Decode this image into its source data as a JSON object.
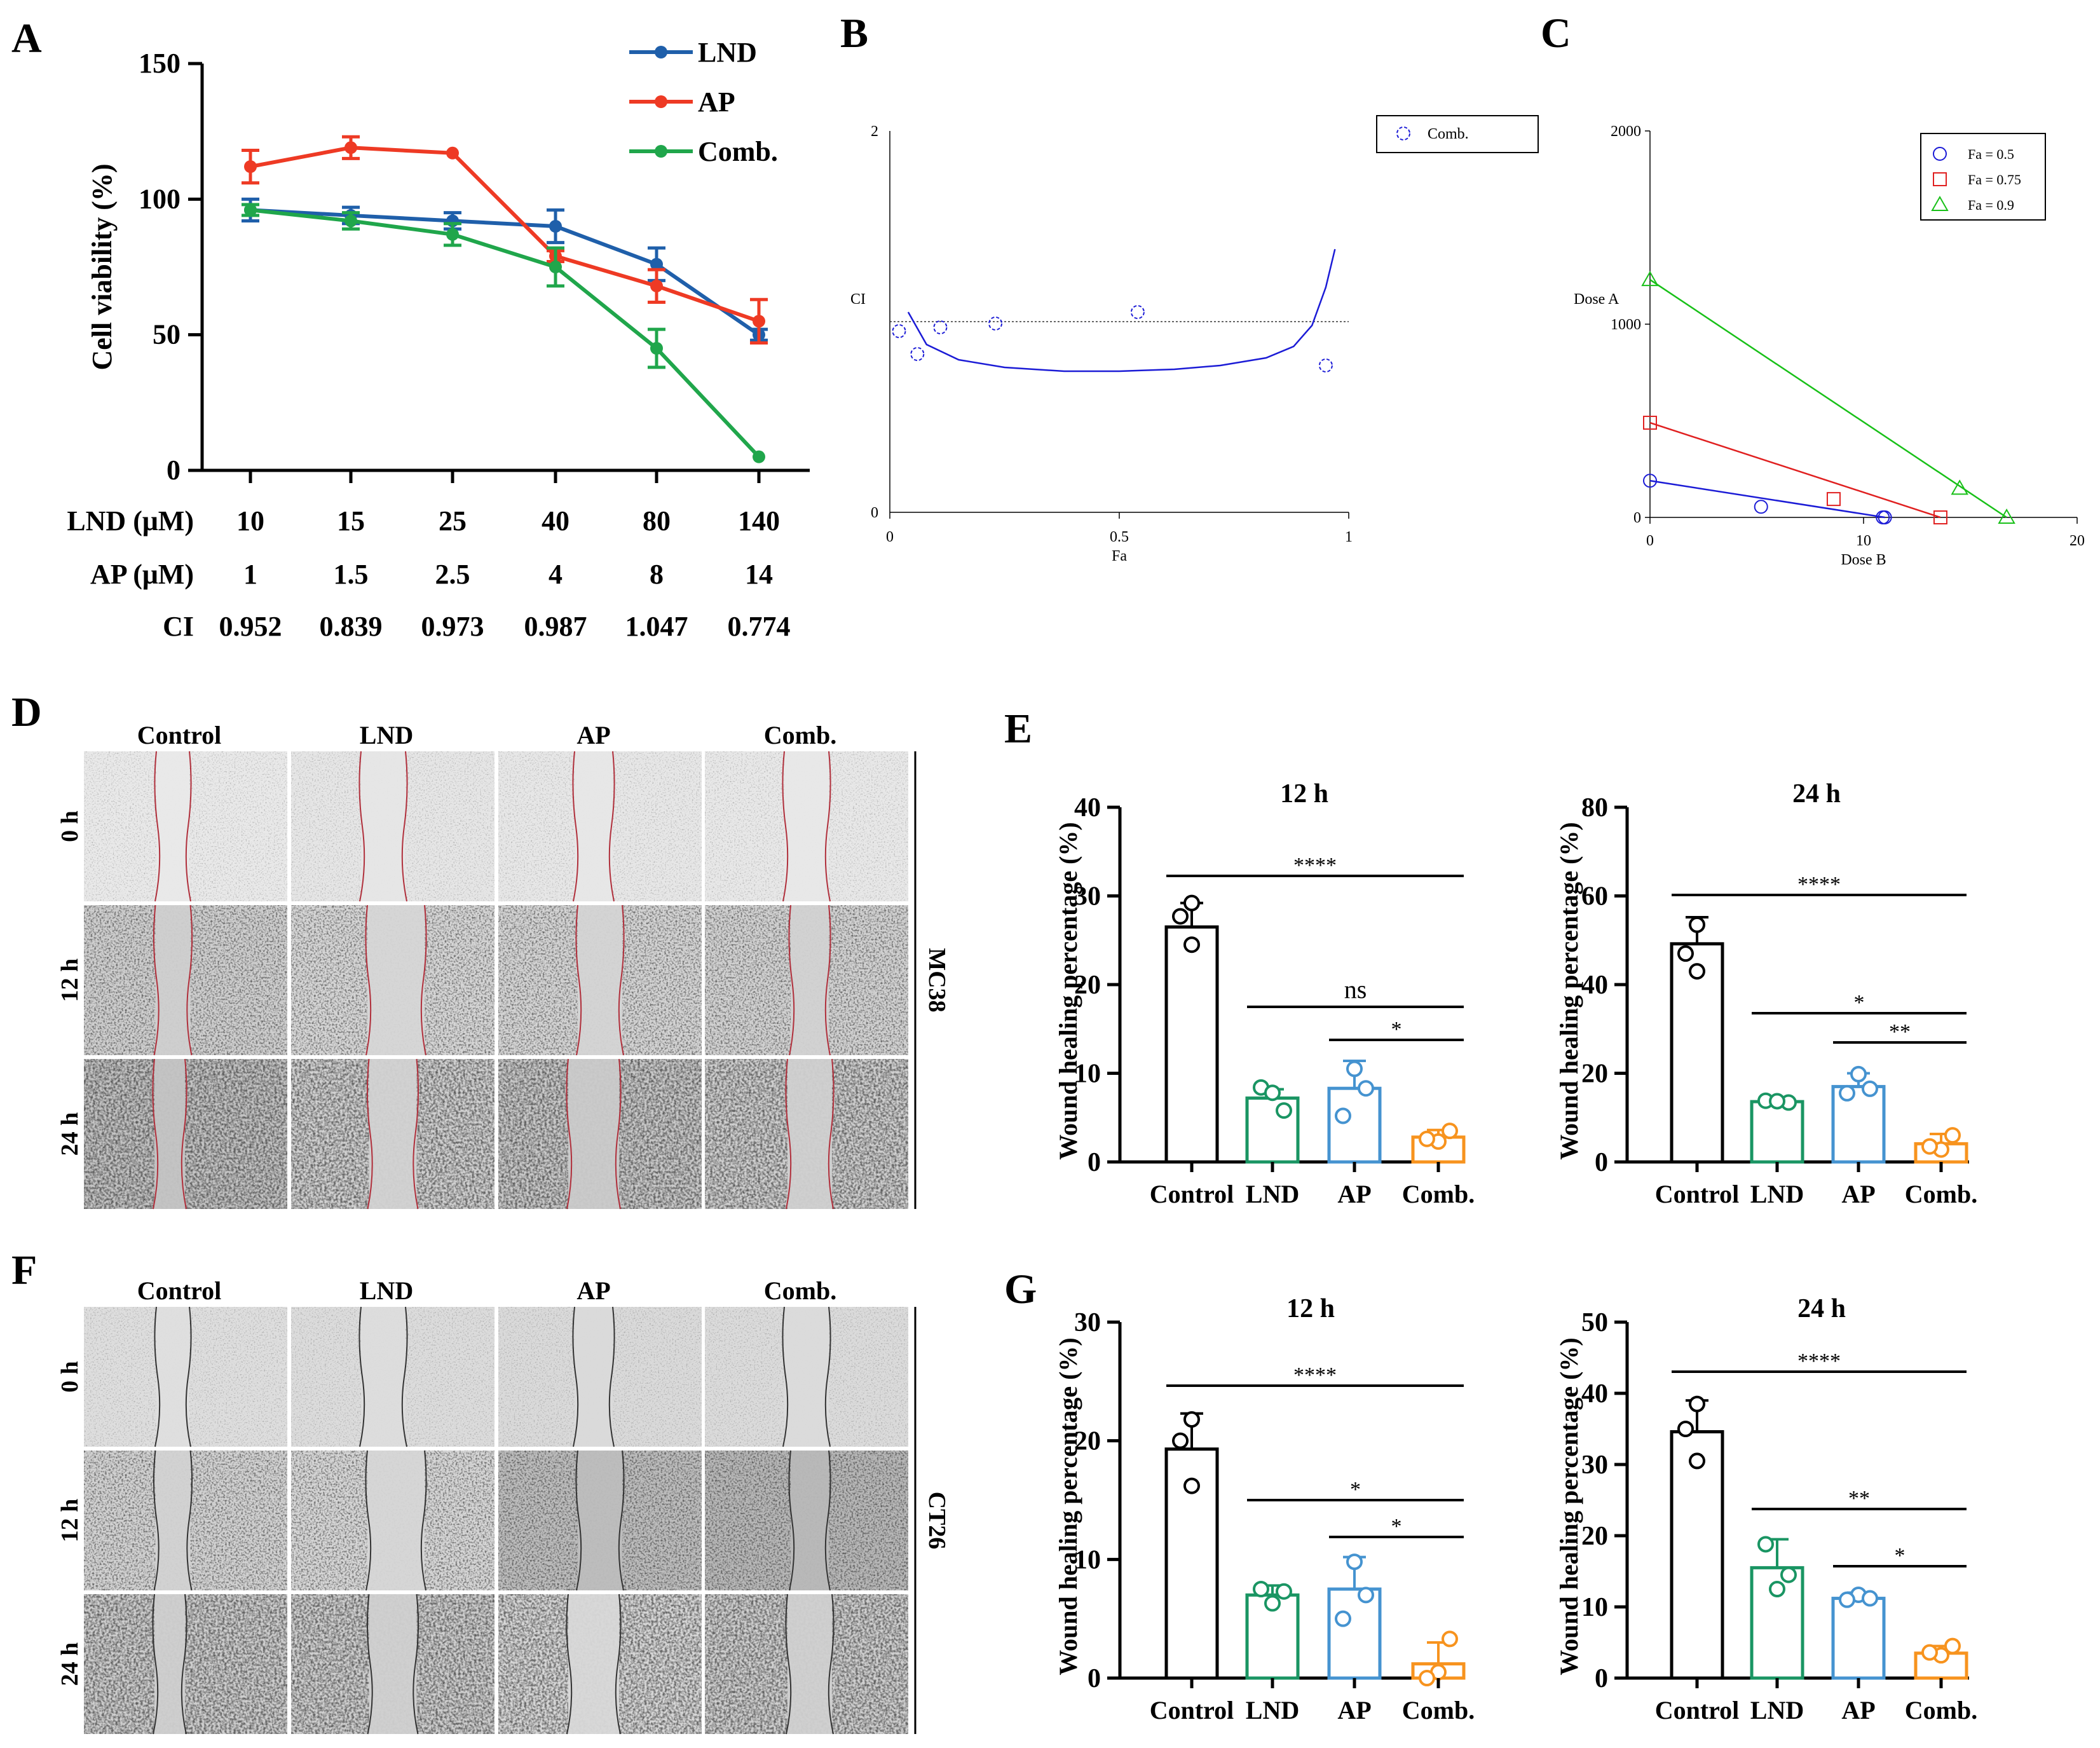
{
  "panel_letters": [
    "A",
    "B",
    "C",
    "D",
    "E",
    "F",
    "G"
  ],
  "colors": {
    "lnd": "#1f5faa",
    "ap": "#ee3a24",
    "comb": "#20a64b",
    "control_bar": "#000000",
    "lnd_bar": "#1a9563",
    "ap_bar": "#4593d0",
    "comb_bar": "#f7931e",
    "isobolo_blue": "#1b1bd6",
    "isobolo_red": "#e02020",
    "isobolo_green": "#18c018"
  },
  "chart_data": [
    {
      "panel": "A",
      "type": "line",
      "title": "",
      "ylabel": "Cell viability (%)",
      "ylim": [
        0,
        150
      ],
      "yticks": [
        0,
        50,
        100,
        150
      ],
      "x": [
        "10",
        "15",
        "25",
        "40",
        "80",
        "140"
      ],
      "series": [
        {
          "name": "LND",
          "values": [
            96,
            94,
            92,
            90,
            76,
            50
          ],
          "errors": [
            4,
            3,
            3,
            6,
            6,
            2
          ]
        },
        {
          "name": "AP",
          "values": [
            112,
            119,
            117,
            79,
            68,
            55
          ],
          "errors": [
            6,
            4,
            0,
            2,
            6,
            8
          ]
        },
        {
          "name": "Comb.",
          "values": [
            96,
            92,
            87,
            75,
            45,
            5
          ],
          "errors": [
            2,
            3,
            4,
            7,
            7,
            0
          ]
        }
      ],
      "table_rows": [
        {
          "label": "LND (μM)",
          "values": [
            "10",
            "15",
            "25",
            "40",
            "80",
            "140"
          ]
        },
        {
          "label": "AP (μM)",
          "values": [
            "1",
            "1.5",
            "2.5",
            "4",
            "8",
            "14"
          ]
        },
        {
          "label": "CI",
          "values": [
            "0.952",
            "0.839",
            "0.973",
            "0.987",
            "1.047",
            "0.774"
          ]
        }
      ],
      "legend_position": "top-right"
    },
    {
      "panel": "B",
      "type": "scatter",
      "xlabel": "Fa",
      "ylabel": "CI",
      "xlim": [
        0,
        1
      ],
      "ylim": [
        0,
        2
      ],
      "xticks": [
        "0",
        "0.5",
        "1"
      ],
      "yticks": [
        "0",
        "2"
      ],
      "reference_line": 1,
      "series": [
        {
          "name": "Comb.",
          "points": [
            [
              0.02,
              0.95
            ],
            [
              0.06,
              0.83
            ],
            [
              0.11,
              0.97
            ],
            [
              0.23,
              0.99
            ],
            [
              0.54,
              1.05
            ],
            [
              0.95,
              0.77
            ]
          ]
        }
      ],
      "fit_curve": [
        [
          0.04,
          1.05
        ],
        [
          0.08,
          0.88
        ],
        [
          0.15,
          0.8
        ],
        [
          0.25,
          0.76
        ],
        [
          0.38,
          0.74
        ],
        [
          0.5,
          0.74
        ],
        [
          0.62,
          0.75
        ],
        [
          0.72,
          0.77
        ],
        [
          0.82,
          0.81
        ],
        [
          0.88,
          0.87
        ],
        [
          0.92,
          0.98
        ],
        [
          0.95,
          1.18
        ],
        [
          0.97,
          1.38
        ]
      ],
      "legend_position": "top-right"
    },
    {
      "panel": "C",
      "type": "scatter",
      "xlabel": "Dose B",
      "ylabel": "Dose A",
      "xlim": [
        0,
        20
      ],
      "ylim": [
        0,
        2000
      ],
      "xticks": [
        "0",
        "10",
        "20"
      ],
      "yticks": [
        "0",
        "1000",
        "2000"
      ],
      "series": [
        {
          "name": "Fa = 0.5",
          "marker": "circle",
          "axis_points": [
            [
              0,
              190
            ],
            [
              11,
              0
            ]
          ],
          "combo": [
            [
              5.2,
              55
            ],
            [
              10.9,
              0
            ]
          ]
        },
        {
          "name": "Fa = 0.75",
          "marker": "square",
          "axis_points": [
            [
              0,
              490
            ],
            [
              13.6,
              0
            ]
          ],
          "combo": [
            [
              8.6,
              95
            ]
          ]
        },
        {
          "name": "Fa = 0.9",
          "marker": "triangle",
          "axis_points": [
            [
              0,
              1230
            ],
            [
              16.7,
              0
            ]
          ],
          "combo": [
            [
              14.5,
              150
            ]
          ]
        }
      ],
      "legend_position": "top-right"
    },
    {
      "panel": "E",
      "type": "bar",
      "title": "12 h",
      "ylabel": "Wound healing percentage  (%)",
      "ylim": [
        0,
        40
      ],
      "yticks": [
        0,
        10,
        20,
        30,
        40
      ],
      "categories": [
        "Control",
        "LND",
        "AP",
        "Comb."
      ],
      "values": [
        26.5,
        7.2,
        8.3,
        2.8
      ],
      "errors": [
        2.7,
        1.0,
        3.1,
        0.8
      ],
      "points": [
        [
          29.2,
          27.7,
          24.5
        ],
        [
          8.4,
          5.8,
          7.8
        ],
        [
          10.5,
          8.3,
          5.2
        ],
        [
          3.5,
          2.3,
          2.6
        ]
      ],
      "significance": [
        {
          "from": 0,
          "to": 3,
          "label": "****"
        },
        {
          "from": 1,
          "to": 3,
          "label": "ns"
        },
        {
          "from": 2,
          "to": 3,
          "label": "*"
        }
      ]
    },
    {
      "panel": "E",
      "type": "bar",
      "title": "24 h",
      "ylabel": "Wound healing percentage  (%)",
      "ylim": [
        0,
        80
      ],
      "yticks": [
        0,
        20,
        40,
        60,
        80
      ],
      "categories": [
        "Control",
        "LND",
        "AP",
        "Comb."
      ],
      "values": [
        49.2,
        13.6,
        17.0,
        4.1
      ],
      "errors": [
        6.0,
        0.4,
        3.0,
        2.2
      ],
      "points": [
        [
          53.5,
          47.0,
          43.0
        ],
        [
          13.8,
          13.4,
          13.7
        ],
        [
          19.8,
          16.5,
          15.5
        ],
        [
          6.0,
          2.8,
          3.5
        ]
      ],
      "significance": [
        {
          "from": 0,
          "to": 3,
          "label": "****"
        },
        {
          "from": 1,
          "to": 3,
          "label": "*"
        },
        {
          "from": 2,
          "to": 3,
          "label": "**"
        }
      ]
    },
    {
      "panel": "G",
      "type": "bar",
      "title": "12 h",
      "ylabel": "Wound healing percentage (%)",
      "ylim": [
        0,
        30
      ],
      "yticks": [
        0,
        10,
        20,
        30
      ],
      "categories": [
        "Control",
        "LND",
        "AP",
        "Comb."
      ],
      "values": [
        19.3,
        7.0,
        7.5,
        1.2
      ],
      "errors": [
        3.0,
        0.8,
        2.7,
        1.8
      ],
      "points": [
        [
          21.8,
          20.0,
          16.2
        ],
        [
          7.5,
          7.3,
          6.3
        ],
        [
          9.8,
          7.0,
          5.0
        ],
        [
          3.3,
          0.5,
          0.0
        ]
      ],
      "significance": [
        {
          "from": 0,
          "to": 3,
          "label": "****"
        },
        {
          "from": 1,
          "to": 3,
          "label": "*"
        },
        {
          "from": 2,
          "to": 3,
          "label": "*"
        }
      ]
    },
    {
      "panel": "G",
      "type": "bar",
      "title": "24 h",
      "ylabel": "Wound healing percentage (%)",
      "ylim": [
        0,
        50
      ],
      "yticks": [
        0,
        10,
        20,
        30,
        40,
        50
      ],
      "categories": [
        "Control",
        "LND",
        "AP",
        "Comb."
      ],
      "values": [
        34.6,
        15.5,
        11.2,
        3.5
      ],
      "errors": [
        4.4,
        4.0,
        0.8,
        1.0
      ],
      "points": [
        [
          38.5,
          35.0,
          30.5
        ],
        [
          18.8,
          14.5,
          12.5
        ],
        [
          11.7,
          11.2,
          11.0
        ],
        [
          4.5,
          3.2,
          3.6
        ]
      ],
      "significance": [
        {
          "from": 0,
          "to": 3,
          "label": "****"
        },
        {
          "from": 1,
          "to": 3,
          "label": "**"
        },
        {
          "from": 2,
          "to": 3,
          "label": "*"
        }
      ]
    }
  ],
  "micrographs": {
    "D": {
      "columns": [
        "Control",
        "LND",
        "AP",
        "Comb."
      ],
      "rows": [
        "0 h",
        "12 h",
        "24 h"
      ],
      "cell_line": "MC38"
    },
    "F": {
      "columns": [
        "Control",
        "LND",
        "AP",
        "Comb."
      ],
      "rows": [
        "0 h",
        "12 h",
        "24 h"
      ],
      "cell_line": "CT26"
    }
  }
}
